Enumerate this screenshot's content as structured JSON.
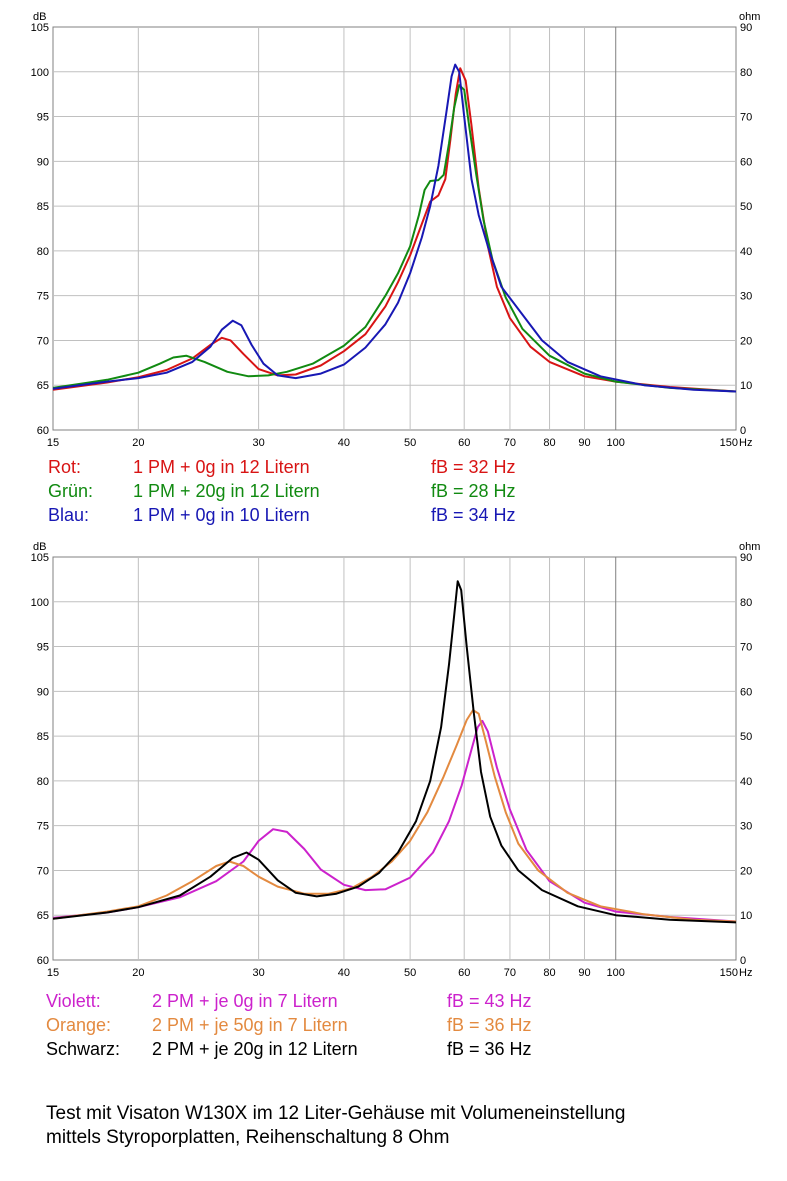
{
  "charts": [
    {
      "y_unit": "dB",
      "y2_unit": "ohm",
      "x_unit": "Hz",
      "y_ticks": [
        "60",
        "65",
        "70",
        "75",
        "80",
        "85",
        "90",
        "95",
        "100",
        "105"
      ],
      "y2_ticks": [
        "0",
        "10",
        "20",
        "30",
        "40",
        "50",
        "60",
        "70",
        "80",
        "90"
      ],
      "x_ticks": [
        {
          "v": 15,
          "t": "15"
        },
        {
          "v": 20,
          "t": "20"
        },
        {
          "v": 30,
          "t": "30"
        },
        {
          "v": 40,
          "t": "40"
        },
        {
          "v": 50,
          "t": "50"
        },
        {
          "v": 60,
          "t": "60"
        },
        {
          "v": 70,
          "t": "70"
        },
        {
          "v": 80,
          "t": "80"
        },
        {
          "v": 90,
          "t": "90"
        },
        {
          "v": 100,
          "t": "100"
        },
        {
          "v": 150,
          "t": "150"
        }
      ]
    },
    {
      "y_unit": "dB",
      "y2_unit": "ohm",
      "x_unit": "Hz",
      "y_ticks": [
        "60",
        "65",
        "70",
        "75",
        "80",
        "85",
        "90",
        "95",
        "100",
        "105"
      ],
      "y2_ticks": [
        "0",
        "10",
        "20",
        "30",
        "40",
        "50",
        "60",
        "70",
        "80",
        "90"
      ],
      "x_ticks": [
        {
          "v": 15,
          "t": "15"
        },
        {
          "v": 20,
          "t": "20"
        },
        {
          "v": 30,
          "t": "30"
        },
        {
          "v": 40,
          "t": "40"
        },
        {
          "v": 50,
          "t": "50"
        },
        {
          "v": 60,
          "t": "60"
        },
        {
          "v": 70,
          "t": "70"
        },
        {
          "v": 80,
          "t": "80"
        },
        {
          "v": 90,
          "t": "90"
        },
        {
          "v": 100,
          "t": "100"
        },
        {
          "v": 150,
          "t": "150"
        }
      ]
    }
  ],
  "legend1": [
    {
      "label": "Rot:",
      "desc": "1 PM + 0g in 12 Litern",
      "fb": "fB = 32 Hz",
      "color": "#d81414"
    },
    {
      "label": "Grün:",
      "desc": "1 PM + 20g in 12 Litern",
      "fb": "fB = 28 Hz",
      "color": "#118a11"
    },
    {
      "label": "Blau:",
      "desc": "1 PM + 0g in 10 Litern",
      "fb": "fB = 34 Hz",
      "color": "#1818b4"
    }
  ],
  "legend2": [
    {
      "label": "Violett:",
      "desc": "2 PM + je 0g in 7 Litern",
      "fb": "fB = 43 Hz",
      "color": "#cc22cc"
    },
    {
      "label": "Orange:",
      "desc": "2 PM + je 50g in 7 Litern",
      "fb": "fB = 36 Hz",
      "color": "#e38a40"
    },
    {
      "label": "Schwarz:",
      "desc": "2 PM + je 20g in 12 Litern",
      "fb": "fB = 36 Hz",
      "color": "#000000"
    }
  ],
  "caption": {
    "line1": "Test mit Visaton W130X im 12 Liter-Gehäuse mit Volumeneinstellung",
    "line2": "mittels Styroporplatten, Reihenschaltung 8 Ohm"
  },
  "chart_data": [
    {
      "type": "line",
      "x_scale": "log",
      "xlim": [
        15,
        150
      ],
      "ylim": [
        60,
        105
      ],
      "y2lim": [
        0,
        90
      ],
      "grid": true,
      "series": [
        {
          "name": "Rot",
          "color": "#d81414",
          "points": [
            [
              15,
              64.5
            ],
            [
              18,
              65.3
            ],
            [
              20,
              65.9
            ],
            [
              22,
              66.7
            ],
            [
              24,
              68.0
            ],
            [
              25.5,
              69.5
            ],
            [
              26.5,
              70.3
            ],
            [
              27.3,
              70.0
            ],
            [
              28.5,
              68.5
            ],
            [
              30,
              66.8
            ],
            [
              32,
              66.1
            ],
            [
              34,
              66.2
            ],
            [
              37,
              67.2
            ],
            [
              40,
              68.8
            ],
            [
              43,
              70.7
            ],
            [
              46,
              73.8
            ],
            [
              48,
              76.5
            ],
            [
              50,
              79.5
            ],
            [
              52,
              83.0
            ],
            [
              53.5,
              85.5
            ],
            [
              55,
              86.2
            ],
            [
              56.3,
              88.0
            ],
            [
              57.3,
              92.5
            ],
            [
              58.3,
              97.5
            ],
            [
              59.2,
              100.4
            ],
            [
              60.3,
              99.0
            ],
            [
              61.5,
              94.0
            ],
            [
              63,
              87.0
            ],
            [
              65,
              80.5
            ],
            [
              67,
              76.0
            ],
            [
              70,
              72.5
            ],
            [
              75,
              69.3
            ],
            [
              80,
              67.6
            ],
            [
              90,
              66.0
            ],
            [
              100,
              65.4
            ],
            [
              120,
              64.8
            ],
            [
              150,
              64.3
            ]
          ]
        },
        {
          "name": "Grün",
          "color": "#118a11",
          "points": [
            [
              15,
              64.7
            ],
            [
              18,
              65.6
            ],
            [
              20,
              66.4
            ],
            [
              21.5,
              67.4
            ],
            [
              22.5,
              68.1
            ],
            [
              23.5,
              68.3
            ],
            [
              25,
              67.6
            ],
            [
              27,
              66.5
            ],
            [
              29,
              66.0
            ],
            [
              31,
              66.1
            ],
            [
              33,
              66.5
            ],
            [
              36,
              67.4
            ],
            [
              40,
              69.4
            ],
            [
              43,
              71.5
            ],
            [
              46,
              75.0
            ],
            [
              48,
              77.5
            ],
            [
              50,
              80.5
            ],
            [
              51.5,
              84.0
            ],
            [
              52.5,
              86.8
            ],
            [
              53.5,
              87.8
            ],
            [
              55,
              87.9
            ],
            [
              56,
              88.5
            ],
            [
              57,
              92.0
            ],
            [
              58,
              96.0
            ],
            [
              59,
              98.5
            ],
            [
              60,
              98.0
            ],
            [
              61,
              94.0
            ],
            [
              62.5,
              88.5
            ],
            [
              64,
              83.5
            ],
            [
              66,
              79.0
            ],
            [
              69,
              74.8
            ],
            [
              73,
              71.3
            ],
            [
              80,
              68.3
            ],
            [
              90,
              66.3
            ],
            [
              100,
              65.4
            ],
            [
              120,
              64.7
            ],
            [
              150,
              64.3
            ]
          ]
        },
        {
          "name": "Blau",
          "color": "#1818b4",
          "points": [
            [
              15,
              64.6
            ],
            [
              18,
              65.4
            ],
            [
              20,
              65.8
            ],
            [
              22,
              66.4
            ],
            [
              24,
              67.6
            ],
            [
              25.5,
              69.3
            ],
            [
              26.5,
              71.2
            ],
            [
              27.5,
              72.2
            ],
            [
              28.3,
              71.7
            ],
            [
              29.3,
              69.5
            ],
            [
              30.5,
              67.4
            ],
            [
              32,
              66.1
            ],
            [
              34,
              65.8
            ],
            [
              37,
              66.3
            ],
            [
              40,
              67.3
            ],
            [
              43,
              69.2
            ],
            [
              46,
              71.8
            ],
            [
              48,
              74.2
            ],
            [
              50,
              77.5
            ],
            [
              52,
              81.5
            ],
            [
              53.5,
              85.0
            ],
            [
              55,
              89.5
            ],
            [
              56.5,
              95.5
            ],
            [
              57.5,
              99.5
            ],
            [
              58.2,
              100.8
            ],
            [
              59,
              100.0
            ],
            [
              60,
              95.0
            ],
            [
              61.5,
              88.0
            ],
            [
              63,
              84.0
            ],
            [
              65,
              80.5
            ],
            [
              68,
              76.0
            ],
            [
              72,
              73.5
            ],
            [
              78,
              70.0
            ],
            [
              85,
              67.6
            ],
            [
              95,
              66.0
            ],
            [
              110,
              65.0
            ],
            [
              130,
              64.5
            ],
            [
              150,
              64.3
            ]
          ]
        }
      ]
    },
    {
      "type": "line",
      "x_scale": "log",
      "xlim": [
        15,
        150
      ],
      "ylim": [
        60,
        105
      ],
      "y2lim": [
        0,
        90
      ],
      "grid": true,
      "series": [
        {
          "name": "Violett",
          "color": "#cc22cc",
          "points": [
            [
              15,
              64.7
            ],
            [
              18,
              65.3
            ],
            [
              20,
              65.9
            ],
            [
              23,
              67.0
            ],
            [
              26,
              68.8
            ],
            [
              28.5,
              71.0
            ],
            [
              30,
              73.3
            ],
            [
              31.5,
              74.6
            ],
            [
              33,
              74.3
            ],
            [
              35,
              72.4
            ],
            [
              37,
              70.1
            ],
            [
              40,
              68.4
            ],
            [
              43,
              67.8
            ],
            [
              46,
              67.9
            ],
            [
              50,
              69.2
            ],
            [
              54,
              72.0
            ],
            [
              57,
              75.5
            ],
            [
              59.5,
              79.5
            ],
            [
              61.5,
              83.5
            ],
            [
              62.8,
              86.0
            ],
            [
              63.8,
              86.7
            ],
            [
              65,
              85.5
            ],
            [
              67,
              81.5
            ],
            [
              70,
              76.8
            ],
            [
              74,
              72.3
            ],
            [
              80,
              68.8
            ],
            [
              90,
              66.4
            ],
            [
              100,
              65.4
            ],
            [
              120,
              64.8
            ],
            [
              150,
              64.3
            ]
          ]
        },
        {
          "name": "Orange",
          "color": "#e38a40",
          "points": [
            [
              15,
              64.6
            ],
            [
              18,
              65.4
            ],
            [
              20,
              66.0
            ],
            [
              22,
              67.2
            ],
            [
              24,
              68.8
            ],
            [
              26,
              70.5
            ],
            [
              27.2,
              71.0
            ],
            [
              28.5,
              70.5
            ],
            [
              30,
              69.3
            ],
            [
              32,
              68.2
            ],
            [
              35,
              67.4
            ],
            [
              38,
              67.4
            ],
            [
              41,
              68.0
            ],
            [
              44,
              69.3
            ],
            [
              47,
              71.0
            ],
            [
              50,
              73.3
            ],
            [
              53,
              76.5
            ],
            [
              56,
              80.5
            ],
            [
              58.5,
              84.0
            ],
            [
              60.5,
              86.8
            ],
            [
              61.8,
              87.9
            ],
            [
              63,
              87.5
            ],
            [
              64.5,
              84.5
            ],
            [
              66.5,
              80.5
            ],
            [
              69,
              76.5
            ],
            [
              72,
              73.0
            ],
            [
              77,
              70.0
            ],
            [
              85,
              67.5
            ],
            [
              95,
              66.0
            ],
            [
              110,
              65.1
            ],
            [
              130,
              64.5
            ],
            [
              150,
              64.3
            ]
          ]
        },
        {
          "name": "Schwarz",
          "color": "#000000",
          "points": [
            [
              15,
              64.6
            ],
            [
              18,
              65.3
            ],
            [
              20,
              65.9
            ],
            [
              23,
              67.2
            ],
            [
              25.5,
              69.3
            ],
            [
              27.5,
              71.4
            ],
            [
              28.8,
              72.0
            ],
            [
              30,
              71.2
            ],
            [
              32,
              68.9
            ],
            [
              34,
              67.5
            ],
            [
              36.5,
              67.1
            ],
            [
              39,
              67.4
            ],
            [
              42,
              68.2
            ],
            [
              45,
              69.7
            ],
            [
              48,
              72.0
            ],
            [
              51,
              75.5
            ],
            [
              53.5,
              80.0
            ],
            [
              55.5,
              86.0
            ],
            [
              57,
              93.0
            ],
            [
              58,
              98.5
            ],
            [
              58.7,
              102.3
            ],
            [
              59.4,
              101.3
            ],
            [
              60.5,
              95.0
            ],
            [
              62,
              87.5
            ],
            [
              63.5,
              81.0
            ],
            [
              65.5,
              76.0
            ],
            [
              68,
              72.8
            ],
            [
              72,
              70.0
            ],
            [
              78,
              67.8
            ],
            [
              88,
              66.0
            ],
            [
              100,
              65.0
            ],
            [
              120,
              64.5
            ],
            [
              150,
              64.2
            ]
          ]
        }
      ]
    }
  ]
}
